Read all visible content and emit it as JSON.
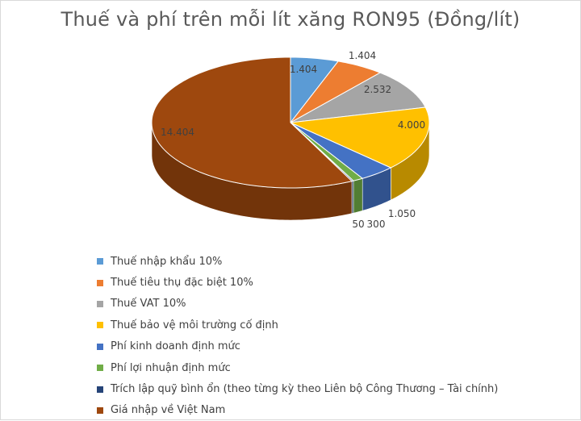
{
  "chart_data": {
    "type": "pie",
    "title": "Thuế và phí trên mỗi lít xăng RON95 (Đồng/lít)",
    "slices": [
      {
        "label": "Thuế nhập khẩu 10%",
        "value": 1404,
        "value_label": "1.404",
        "color": "#5b9bd5"
      },
      {
        "label": "Thuế tiêu thụ đặc biệt 10%",
        "value": 1404,
        "value_label": "1.404",
        "color": "#ed7d31"
      },
      {
        "label": "Thuế VAT 10%",
        "value": 2532,
        "value_label": "2.532",
        "color": "#a5a5a5"
      },
      {
        "label": "Thuế bảo vệ môi trường cố định",
        "value": 4000,
        "value_label": "4.000",
        "color": "#ffc000"
      },
      {
        "label": "Phí kinh doanh định mức",
        "value": 1050,
        "value_label": "1.050",
        "color": "#4472c4"
      },
      {
        "label": "Phí lợi nhuận định mức",
        "value": 300,
        "value_label": "300",
        "color": "#70ad47"
      },
      {
        "label": "Trích lập quỹ bình ổn (theo từng kỳ theo Liên bộ Công Thương – Tài chính)",
        "value": 50,
        "value_label": "50",
        "color": "#264478"
      },
      {
        "label": "Giá nhập về Việt Nam",
        "value": 14404,
        "value_label": "14.404",
        "color": "#9e480e"
      }
    ],
    "legend_position": "bottom-left",
    "style": "3d-pie"
  }
}
